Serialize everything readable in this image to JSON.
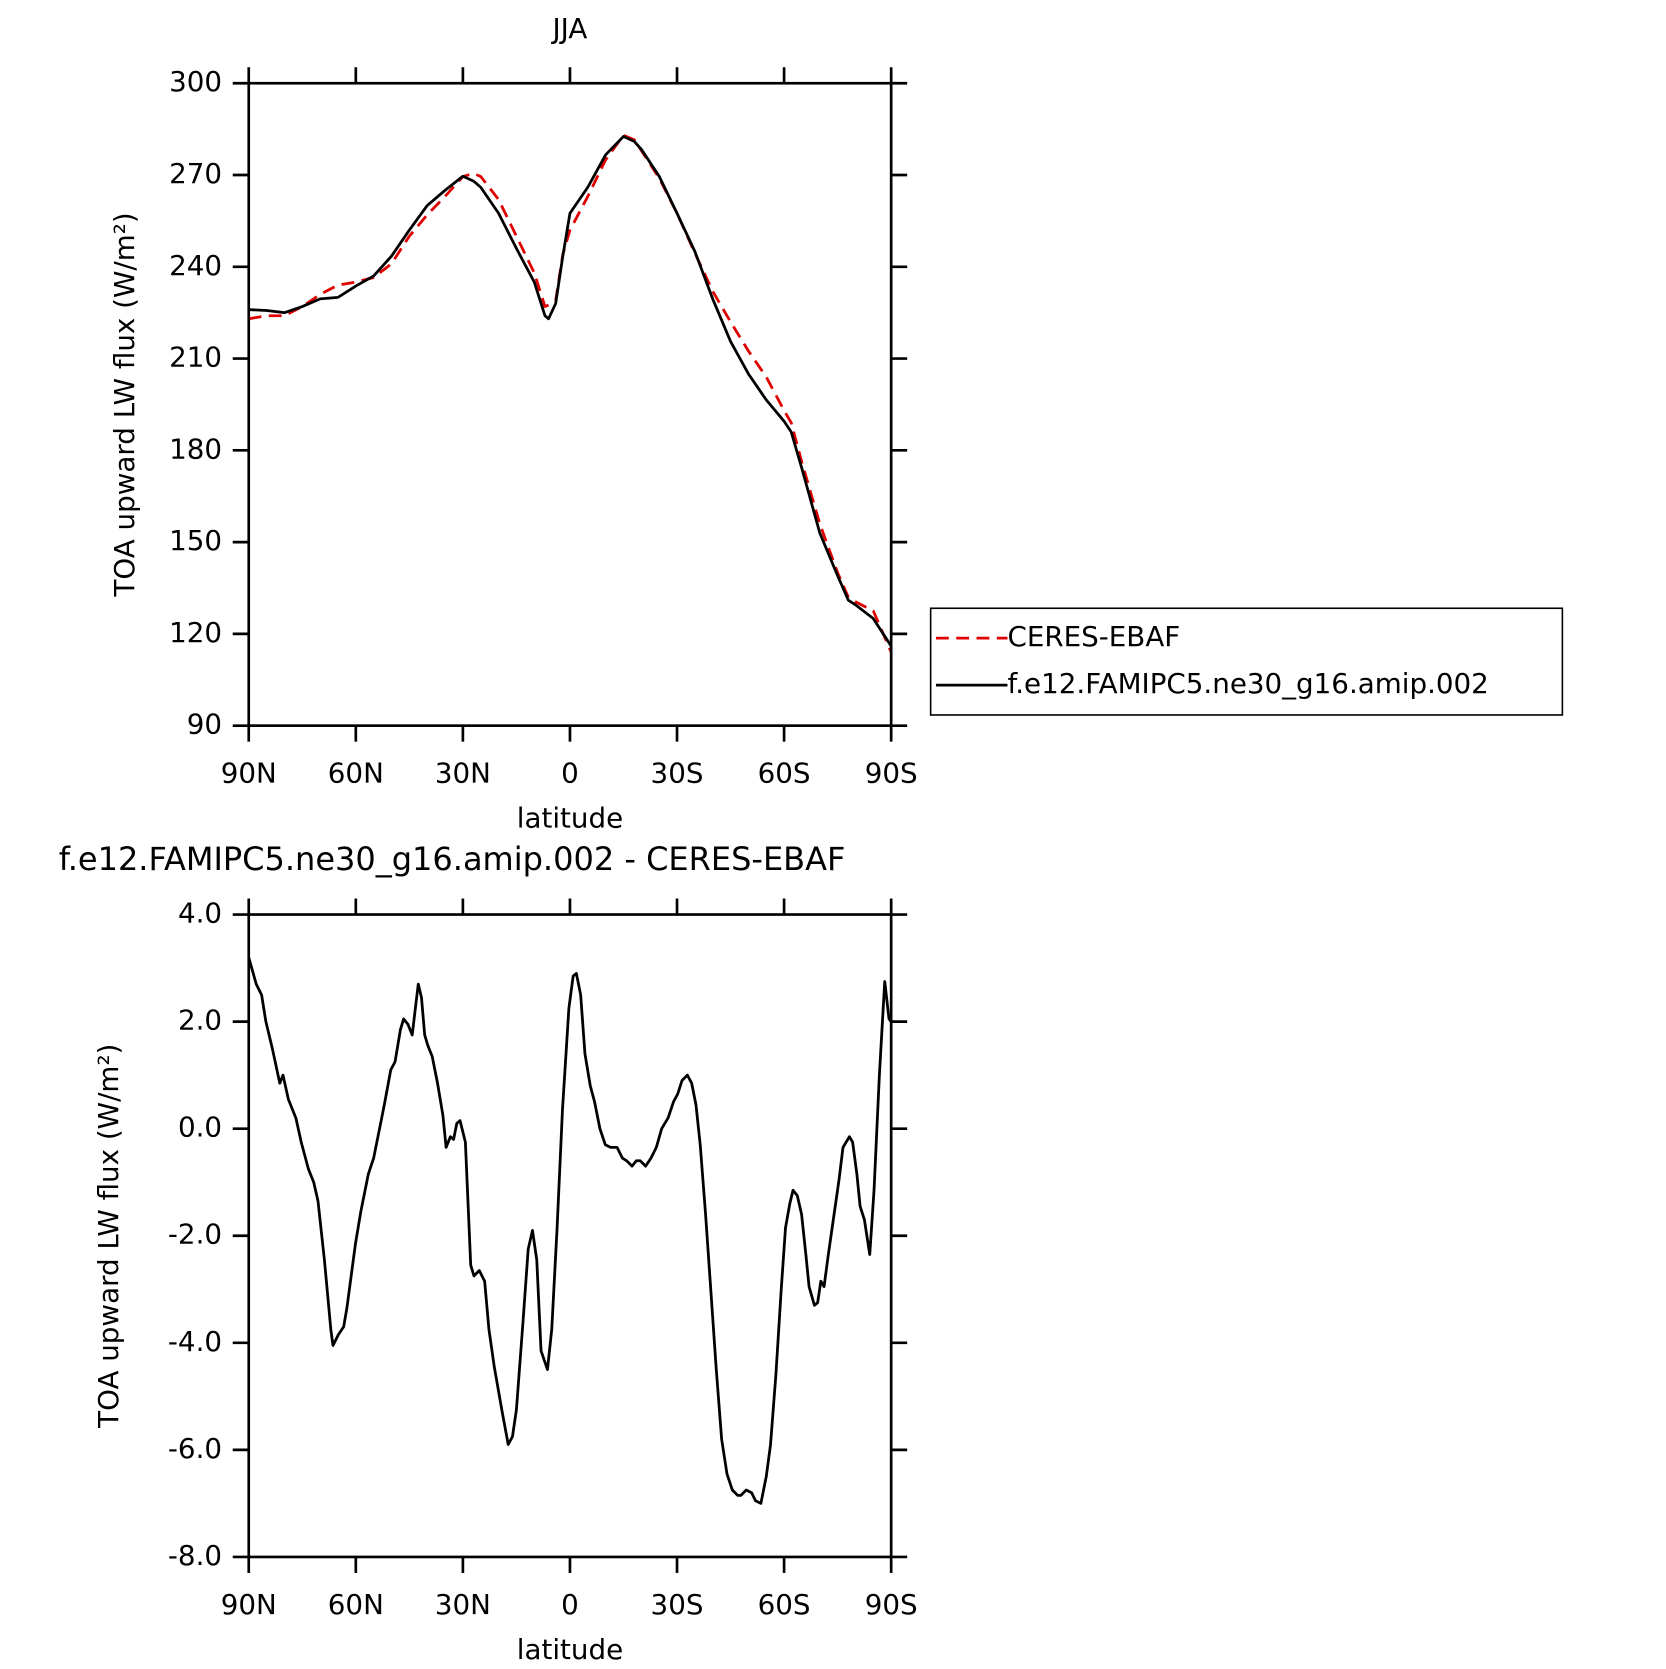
{
  "chart_data": [
    {
      "type": "line",
      "title": "JJA",
      "xlabel": "latitude",
      "ylabel": "TOA upward LW flux (W/m²)",
      "x": [
        90,
        85,
        80,
        75,
        70,
        65,
        60,
        55,
        50,
        45,
        40,
        35,
        30,
        27,
        25,
        20,
        15,
        10,
        7,
        6,
        4,
        2,
        0,
        -5,
        -10,
        -15,
        -18,
        -20,
        -25,
        -30,
        -35,
        -40,
        -45,
        -50,
        -55,
        -60,
        -62,
        -65,
        -70,
        -75,
        -78,
        -80,
        -85,
        -90
      ],
      "series": [
        {
          "name": "CERES-EBAF",
          "color": "#e00000",
          "linestyle": "dashed",
          "values": [
            223,
            224,
            224,
            227,
            231,
            234,
            235,
            236.5,
            241,
            250,
            257,
            263,
            269.5,
            270.5,
            269.5,
            262,
            250,
            238,
            227,
            227.5,
            229,
            244,
            252,
            263,
            275,
            283,
            281.5,
            278,
            269,
            257.5,
            244.5,
            232,
            222,
            212.5,
            204,
            193,
            189,
            176,
            156,
            140,
            132,
            130.5,
            127.5,
            114
          ]
        },
        {
          "name": "f.e12.FAMIPC5.ne30_g16.amip.002",
          "color": "#000000",
          "linestyle": "solid",
          "values": [
            226,
            225.7,
            225,
            227,
            229.5,
            230,
            233.7,
            237,
            243.5,
            252,
            260,
            265,
            269.6,
            268,
            266,
            257.5,
            246,
            235,
            224,
            223,
            228,
            243.5,
            257.5,
            266,
            276.6,
            282.6,
            281,
            278.4,
            269.6,
            257.5,
            245,
            229.5,
            215.6,
            205,
            196.5,
            189.5,
            186,
            174,
            153,
            139,
            131,
            129.5,
            125,
            116
          ]
        }
      ],
      "xlim": [
        90,
        -90
      ],
      "xticks": [
        {
          "value": 90,
          "label": "90N"
        },
        {
          "value": 60,
          "label": "60N"
        },
        {
          "value": 30,
          "label": "30N"
        },
        0,
        {
          "value": -30,
          "label": "30S"
        },
        {
          "value": -60,
          "label": "60S"
        },
        {
          "value": -90,
          "label": "90S"
        }
      ],
      "ylim": [
        90,
        300
      ],
      "yticks": [
        90,
        120,
        150,
        180,
        210,
        240,
        270,
        300
      ],
      "legend": "right"
    },
    {
      "type": "line",
      "title": "f.e12.FAMIPC5.ne30_g16.amip.002 - CERES-EBAF",
      "xlabel": "latitude",
      "ylabel": "TOA upward LW flux (W/m²)",
      "x": [
        90,
        87.9,
        86.4,
        85.2,
        83.4,
        81.3,
        80.4,
        78.9,
        76.8,
        75.3,
        73.3,
        71.8,
        70.6,
        68.8,
        67.0,
        66.4,
        64.9,
        63.4,
        62.5,
        60.1,
        58.6,
        56.5,
        55.0,
        53.5,
        52.0,
        50.2,
        49.0,
        47.5,
        46.6,
        45.4,
        44.2,
        43.4,
        42.5,
        41.6,
        40.7,
        39.8,
        38.6,
        37.1,
        35.6,
        34.7,
        33.5,
        32.6,
        31.7,
        30.8,
        29.3,
        27.8,
        26.9,
        25.4,
        23.9,
        22.7,
        21.2,
        19.1,
        17.3,
        16.1,
        15.0,
        13.2,
        11.7,
        10.5,
        9.3,
        8.1,
        6.3,
        5.1,
        3.6,
        2.1,
        0.3,
        -0.9,
        -1.8,
        -3.0,
        -4.2,
        -5.7,
        -6.9,
        -8.4,
        -9.9,
        -11.4,
        -13.2,
        -14.7,
        -15.9,
        -17.4,
        -18.6,
        -19.7,
        -21.2,
        -22.7,
        -24.2,
        -25.7,
        -27.5,
        -29.0,
        -30.2,
        -31.4,
        -32.9,
        -34.1,
        -35.3,
        -36.5,
        -38.0,
        -39.5,
        -41.0,
        -42.5,
        -44.0,
        -45.5,
        -47.0,
        -47.9,
        -49.4,
        -50.9,
        -52.0,
        -53.5,
        -55.0,
        -56.2,
        -57.7,
        -59.2,
        -60.4,
        -61.6,
        -62.5,
        -63.7,
        -64.9,
        -66.1,
        -67.0,
        -68.5,
        -69.4,
        -70.3,
        -71.2,
        -72.4,
        -73.9,
        -75.4,
        -76.5,
        -78.3,
        -79.2,
        -80.4,
        -81.3,
        -82.5,
        -84.0,
        -85.2,
        -86.7,
        -88.2,
        -89.4,
        -90
      ],
      "series": [
        {
          "color": "#000000",
          "linestyle": "solid",
          "values": [
            3.2,
            2.7,
            2.5,
            2.0,
            1.5,
            0.85,
            1.0,
            0.55,
            0.2,
            -0.25,
            -0.75,
            -1.0,
            -1.35,
            -2.45,
            -3.75,
            -4.05,
            -3.85,
            -3.7,
            -3.35,
            -2.15,
            -1.55,
            -0.85,
            -0.55,
            -0.05,
            0.45,
            1.1,
            1.25,
            1.85,
            2.05,
            1.95,
            1.75,
            2.2,
            2.7,
            2.45,
            1.75,
            1.55,
            1.35,
            0.85,
            0.25,
            -0.35,
            -0.15,
            -0.2,
            0.1,
            0.15,
            -0.25,
            -2.55,
            -2.75,
            -2.65,
            -2.85,
            -3.75,
            -4.45,
            -5.25,
            -5.9,
            -5.75,
            -5.25,
            -3.65,
            -2.25,
            -1.9,
            -2.45,
            -4.15,
            -4.5,
            -3.75,
            -1.85,
            0.35,
            2.25,
            2.85,
            2.9,
            2.5,
            1.4,
            0.8,
            0.5,
            0.0,
            -0.3,
            -0.35,
            -0.35,
            -0.55,
            -0.6,
            -0.7,
            -0.6,
            -0.6,
            -0.7,
            -0.55,
            -0.35,
            0.0,
            0.2,
            0.5,
            0.65,
            0.9,
            1.0,
            0.85,
            0.45,
            -0.3,
            -1.6,
            -3.05,
            -4.5,
            -5.8,
            -6.45,
            -6.75,
            -6.85,
            -6.85,
            -6.75,
            -6.8,
            -6.95,
            -7.0,
            -6.5,
            -5.9,
            -4.6,
            -3.0,
            -1.85,
            -1.4,
            -1.15,
            -1.25,
            -1.6,
            -2.35,
            -2.95,
            -3.3,
            -3.25,
            -2.85,
            -2.95,
            -2.35,
            -1.65,
            -0.95,
            -0.35,
            -0.15,
            -0.25,
            -0.85,
            -1.45,
            -1.7,
            -2.35,
            -1.15,
            1.0,
            2.75,
            2.05,
            2.0
          ]
        }
      ],
      "xlim": [
        90,
        -90
      ],
      "xticks": [
        {
          "value": 90,
          "label": "90N"
        },
        {
          "value": 60,
          "label": "60N"
        },
        {
          "value": 30,
          "label": "30N"
        },
        0,
        {
          "value": -30,
          "label": "30S"
        },
        {
          "value": -60,
          "label": "60S"
        },
        {
          "value": -90,
          "label": "90S"
        }
      ],
      "ylim": [
        -8,
        4
      ],
      "yticks": [
        {
          "value": -8,
          "label": "-8.0"
        },
        {
          "value": -6,
          "label": "-6.0"
        },
        {
          "value": -4,
          "label": "-4.0"
        },
        {
          "value": -2,
          "label": "-2.0"
        },
        {
          "value": 0,
          "label": "0.0"
        },
        {
          "value": 2,
          "label": "2.0"
        },
        {
          "value": 4,
          "label": "4.0"
        }
      ]
    }
  ]
}
